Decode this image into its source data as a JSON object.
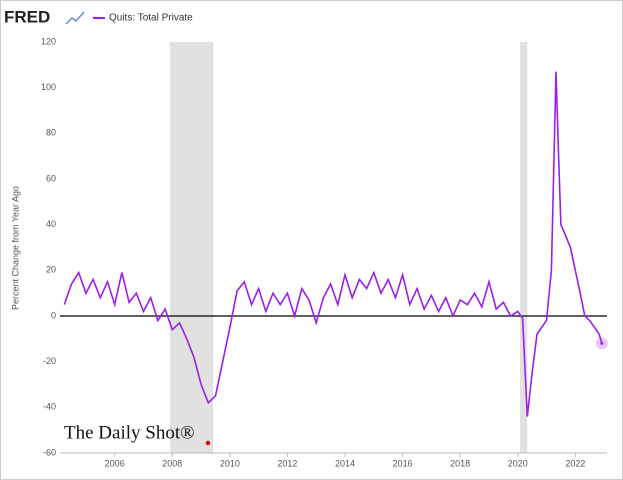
{
  "logo": "FRED",
  "watermark": "The Daily Shot®",
  "chart_data": {
    "type": "line",
    "ylabel": "Percent Change from Year Ago",
    "xlim": [
      2004.1,
      2023.1
    ],
    "xticks": [
      2006,
      2008,
      2010,
      2012,
      2014,
      2016,
      2018,
      2020,
      2022
    ],
    "ylim": [
      -60,
      120
    ],
    "yticks": [
      -60,
      -40,
      -20,
      0,
      20,
      40,
      60,
      80,
      100,
      120
    ],
    "grid": false,
    "zero_line": true,
    "recessions": [
      [
        2007.92,
        2009.42
      ],
      [
        2020.08,
        2020.33
      ]
    ],
    "recession_color": "#e1e1e1",
    "legend": "top-left",
    "series": [
      {
        "name": "Quits: Total Private",
        "color": "#9b1fe8",
        "x": [
          2004.25,
          2004.5,
          2004.75,
          2005.0,
          2005.25,
          2005.5,
          2005.75,
          2006.0,
          2006.25,
          2006.5,
          2006.75,
          2007.0,
          2007.25,
          2007.5,
          2007.75,
          2008.0,
          2008.25,
          2008.5,
          2008.75,
          2009.0,
          2009.25,
          2009.5,
          2009.75,
          2010.0,
          2010.25,
          2010.5,
          2010.75,
          2011.0,
          2011.25,
          2011.5,
          2011.75,
          2012.0,
          2012.25,
          2012.5,
          2012.75,
          2013.0,
          2013.25,
          2013.5,
          2013.75,
          2014.0,
          2014.25,
          2014.5,
          2014.75,
          2015.0,
          2015.25,
          2015.5,
          2015.75,
          2016.0,
          2016.25,
          2016.5,
          2016.75,
          2017.0,
          2017.25,
          2017.5,
          2017.75,
          2018.0,
          2018.25,
          2018.5,
          2018.75,
          2019.0,
          2019.25,
          2019.5,
          2019.75,
          2020.0,
          2020.17,
          2020.33,
          2020.5,
          2020.67,
          2020.83,
          2021.0,
          2021.17,
          2021.33,
          2021.42,
          2021.5,
          2021.67,
          2021.83,
          2022.0,
          2022.17,
          2022.33,
          2022.5,
          2022.67,
          2022.83,
          2022.92
        ],
        "values": [
          5,
          14,
          19,
          10,
          16,
          8,
          15,
          5,
          19,
          6,
          10,
          2,
          8,
          -2,
          3,
          -6,
          -3,
          -10,
          -18,
          -30,
          -38,
          -35,
          -20,
          -5,
          11,
          15,
          5,
          12,
          2,
          10,
          5,
          10,
          0,
          12,
          7,
          -3,
          8,
          14,
          5,
          18,
          8,
          16,
          12,
          19,
          10,
          16,
          8,
          18,
          5,
          12,
          3,
          9,
          2,
          8,
          0,
          7,
          5,
          10,
          4,
          15,
          3,
          6,
          0,
          2,
          -1,
          -44,
          -25,
          -8,
          -5,
          -2,
          20,
          107,
          70,
          40,
          35,
          30,
          20,
          10,
          0,
          -2,
          -5,
          -8,
          -12
        ]
      }
    ]
  }
}
